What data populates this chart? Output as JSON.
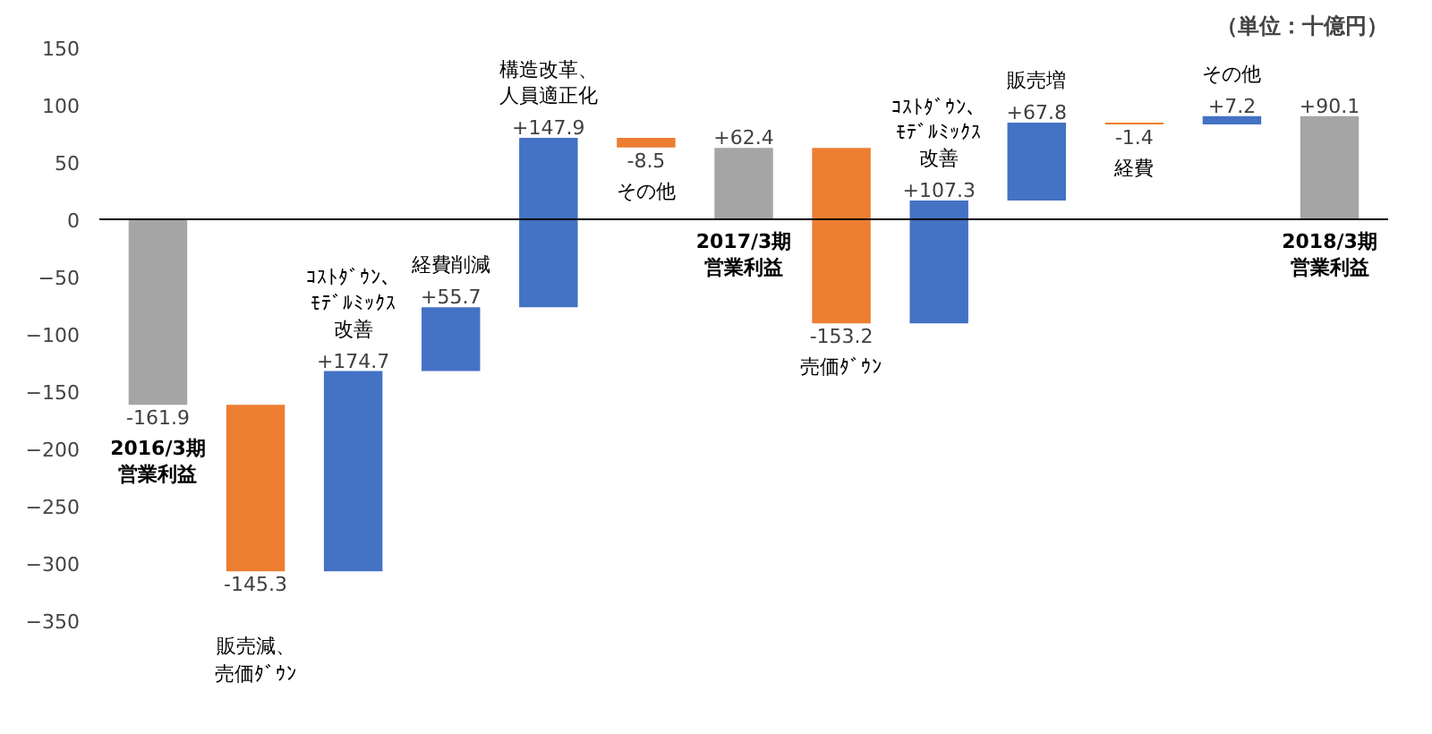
{
  "chart_data": {
    "type": "bar",
    "categories": [
      "2016/3期営業利益",
      "販売減、売価ﾀﾞｳﾝ",
      "ｺｽﾄﾀﾞｳﾝ、ﾓﾃﾞﾙﾐｯｸｽ改善",
      "経費削減",
      "構造改革、人員適正化",
      "その他",
      "2017/3期営業利益",
      "売価ﾀﾞｳﾝ",
      "ｺｽﾄﾀﾞｳﾝ、ﾓﾃﾞﾙﾐｯｸｽ改善",
      "販売増",
      "経費",
      "その他",
      "2018/3期営業利益"
    ],
    "values": [
      -161.9,
      -145.3,
      174.7,
      55.7,
      147.9,
      -8.5,
      62.4,
      -153.2,
      107.3,
      67.8,
      -1.4,
      7.2,
      90.1
    ],
    "base": [
      0,
      -161.9,
      -307.2,
      -132.5,
      -76.8,
      71.1,
      0,
      62.4,
      -90.8,
      16.5,
      84.3,
      82.9,
      0
    ],
    "colors": [
      "#a5a5a5",
      "#ed7d31",
      "#4472c4",
      "#4472c4",
      "#4472c4",
      "#ed7d31",
      "#a5a5a5",
      "#ed7d31",
      "#4472c4",
      "#4472c4",
      "#ed7d31",
      "#4472c4",
      "#a5a5a5"
    ],
    "value_labels": [
      "-161.9",
      "-145.3",
      "+174.7",
      "+55.7",
      "+147.9",
      "-8.5",
      "+62.4",
      "-153.2",
      "+107.3",
      "+67.8",
      "-1.4",
      "+7.2",
      "+90.1"
    ],
    "ylim": [
      -350,
      150
    ],
    "yticks": [
      -350,
      -300,
      -250,
      -200,
      -150,
      -100,
      -50,
      0,
      50,
      100,
      150
    ],
    "grid": false,
    "tick_labels": "y",
    "annotations": [
      "（単位：十億円）"
    ]
  }
}
